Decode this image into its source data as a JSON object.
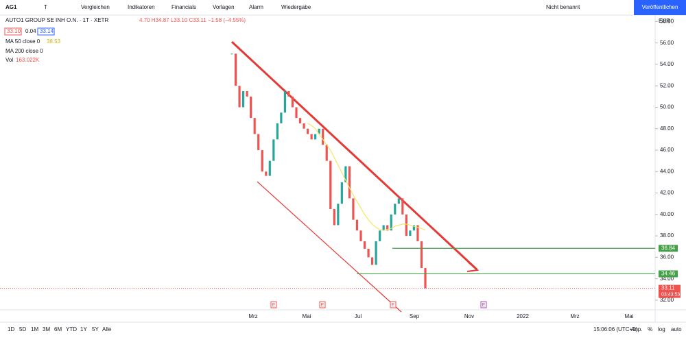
{
  "toolbar": {
    "symbol": "AG1",
    "interval": "T",
    "buttons": [
      "Vergleichen",
      "Indikatoren",
      "Financials",
      "Vorlagen",
      "Alarm",
      "Wiedergabe"
    ],
    "layout_name": "Nicht benannt",
    "publish": "Veröffentlichen"
  },
  "legend": {
    "title": "AUTO1 GROUP SE INH O.N. · 1T · XETR",
    "ohlc": "4.70 H34.87 L33.10 C33.11 −1.58 (−4.55%)",
    "bid": "33.10",
    "spread": "0.04",
    "ask": "33.14",
    "indicators": [
      {
        "name": "MA 50 close 0",
        "value": "38.53"
      },
      {
        "name": "MA 200 close 0"
      },
      {
        "name": "Vol",
        "value": "163.022K"
      }
    ]
  },
  "chart_data": {
    "type": "candlestick",
    "currency": "EUR",
    "closes": [
      55,
      52,
      50,
      51.5,
      51,
      49,
      47.5,
      46,
      44,
      43.6,
      45,
      47,
      48.5,
      49.5,
      51.5,
      51,
      50,
      49,
      48.5,
      48,
      47.5,
      47,
      47.5,
      48,
      46.5,
      45,
      40.5,
      39,
      41,
      43,
      44.5,
      41.5,
      39.5,
      38.5,
      37.5,
      36.8,
      36,
      35.3,
      37.5,
      38.5,
      39,
      38.5,
      40,
      41,
      41.5,
      40,
      38,
      38.5,
      39,
      37.5,
      35,
      33.11
    ],
    "ma50": [
      null,
      null,
      null,
      null,
      null,
      null,
      null,
      null,
      null,
      null,
      null,
      null,
      null,
      null,
      null,
      null,
      null,
      null,
      null,
      null,
      48.5,
      48.3,
      48,
      47.5,
      47,
      46.5,
      46,
      45.3,
      44.6,
      43.9,
      43.2,
      42.5,
      41.8,
      41.2,
      40.6,
      40,
      39.5,
      39.1,
      38.8,
      38.6,
      38.5,
      38.6,
      38.7,
      38.9,
      39,
      39.1,
      39.1,
      39,
      38.9,
      38.8,
      38.7,
      38.53
    ],
    "ylim": [
      31.1,
      58.6
    ],
    "yticks": [
      {
        "value": 58,
        "label": "58.00"
      },
      {
        "value": 56,
        "label": "56.00"
      },
      {
        "value": 54,
        "label": "54.00"
      },
      {
        "value": 52,
        "label": "52.00"
      },
      {
        "value": 50,
        "label": "50.00"
      },
      {
        "value": 48,
        "label": "48.00"
      },
      {
        "value": 46,
        "label": "46.00"
      },
      {
        "value": 44,
        "label": "44.00"
      },
      {
        "value": 42,
        "label": "42.00"
      },
      {
        "value": 40,
        "label": "40.00"
      },
      {
        "value": 38,
        "label": "38.00"
      },
      {
        "value": 36,
        "label": "36.00"
      },
      {
        "value": 34,
        "label": "34.00"
      },
      {
        "value": 32,
        "label": "32.00"
      }
    ],
    "levels": [
      {
        "value": 36.84,
        "label": "36.84"
      },
      {
        "value": 34.46,
        "label": "34.46"
      }
    ],
    "last": {
      "value": 33.11,
      "label": "33.11",
      "countdown": "03:43:53"
    },
    "x_labels": [
      "Mrz",
      "Mai",
      "Jul",
      "Sep",
      "Nov",
      "2022",
      "Mrz",
      "Mai"
    ],
    "events": [
      "E",
      "E",
      "E",
      "E"
    ]
  },
  "bottom": {
    "ranges": [
      "1D",
      "5D",
      "1M",
      "3M",
      "6M",
      "YTD",
      "1Y",
      "5Y",
      "Alle"
    ],
    "time": "15:06:06 (UTC+2)",
    "options": [
      "Anp.",
      "%",
      "log",
      "auto"
    ]
  }
}
